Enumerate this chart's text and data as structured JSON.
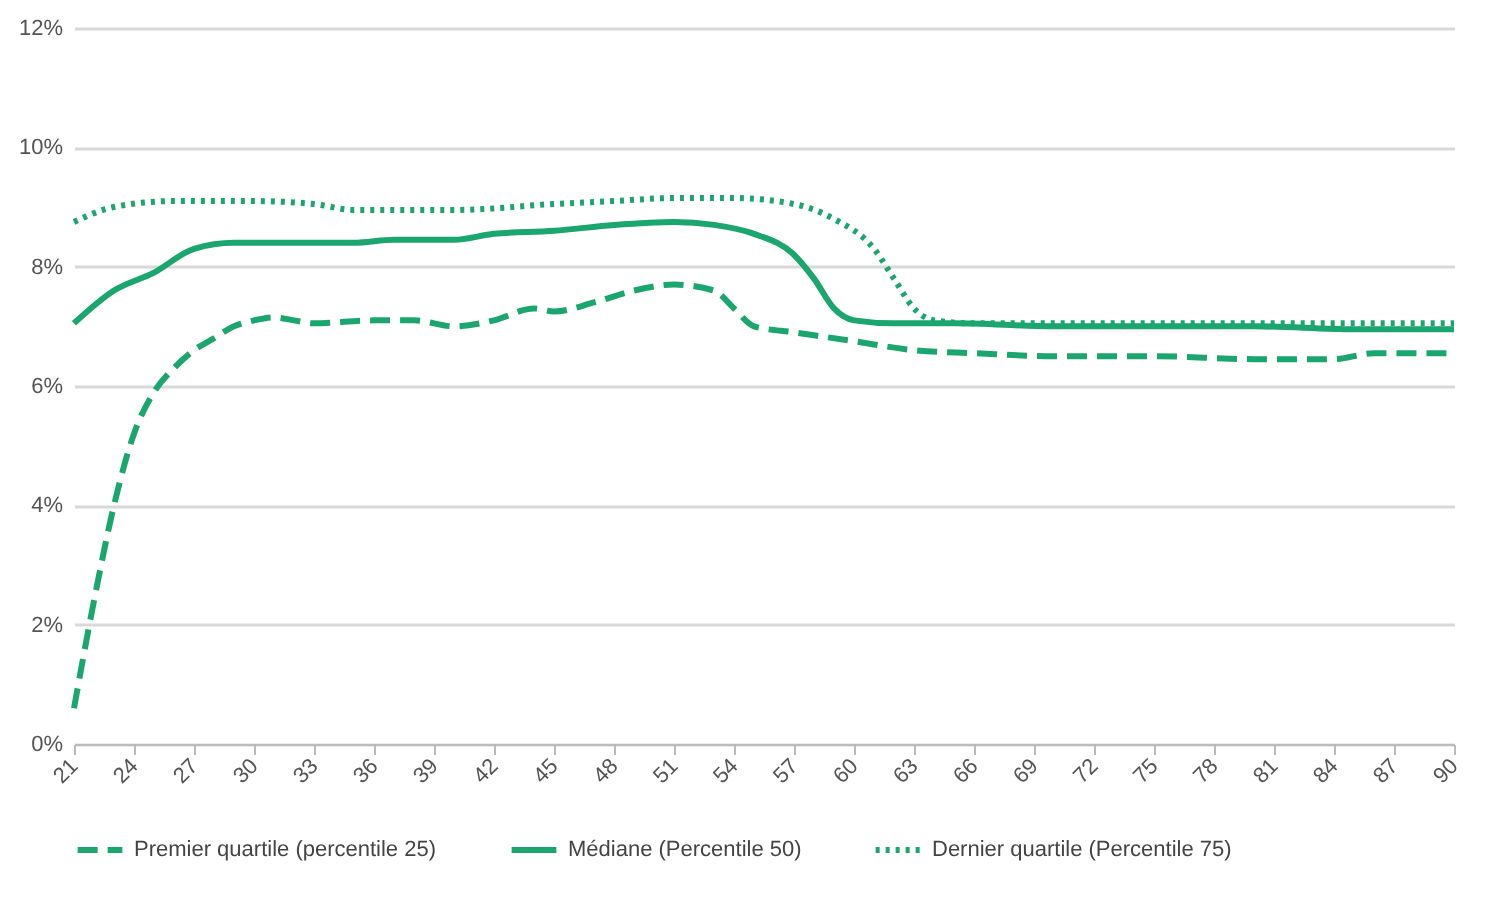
{
  "chart_data": {
    "type": "line",
    "xlim": [
      21,
      90
    ],
    "xticks": [
      21,
      24,
      27,
      30,
      33,
      36,
      39,
      42,
      45,
      48,
      51,
      54,
      57,
      60,
      63,
      66,
      69,
      72,
      75,
      78,
      81,
      84,
      87,
      90
    ],
    "ylim": [
      0,
      12
    ],
    "yticks": [
      {
        "value": 0,
        "label": "0%"
      },
      {
        "value": 2,
        "label": "2%"
      },
      {
        "value": 4,
        "label": "4%"
      },
      {
        "value": 6,
        "label": "6%"
      },
      {
        "value": 8,
        "label": "8%"
      },
      {
        "value": 10,
        "label": "10%"
      },
      {
        "value": 12,
        "label": "12%"
      }
    ],
    "grid": "y",
    "legend": "bottom",
    "series": [
      {
        "name": "Premier quartile (percentile 25)",
        "color": "#1aa66e",
        "line_style": "dashed",
        "x": [
          21,
          22,
          23,
          24,
          25,
          26,
          27,
          28,
          29,
          30,
          31,
          32,
          33,
          36,
          38,
          40,
          42,
          44,
          45,
          47,
          49,
          51,
          53,
          54,
          55,
          57,
          60,
          63,
          66,
          70,
          75,
          80,
          84,
          86,
          90
        ],
        "values": [
          0.6,
          2.4,
          4.0,
          5.2,
          5.9,
          6.3,
          6.6,
          6.8,
          7.0,
          7.1,
          7.15,
          7.1,
          7.05,
          7.1,
          7.1,
          7.0,
          7.1,
          7.3,
          7.25,
          7.4,
          7.6,
          7.7,
          7.6,
          7.3,
          7.0,
          6.9,
          6.75,
          6.6,
          6.55,
          6.5,
          6.5,
          6.45,
          6.45,
          6.55,
          6.55
        ]
      },
      {
        "name": "Médiane (Percentile 50)",
        "color": "#1aa66e",
        "line_style": "solid",
        "x": [
          21,
          23,
          25,
          27,
          29,
          31,
          33,
          35,
          37,
          40,
          42,
          45,
          48,
          51,
          53,
          55,
          57,
          58,
          59,
          60,
          62,
          65,
          70,
          80,
          85,
          90
        ],
        "values": [
          7.05,
          7.6,
          7.9,
          8.3,
          8.4,
          8.4,
          8.4,
          8.4,
          8.45,
          8.45,
          8.55,
          8.6,
          8.7,
          8.75,
          8.7,
          8.55,
          8.2,
          7.8,
          7.3,
          7.1,
          7.05,
          7.05,
          7.0,
          7.0,
          6.95,
          6.95
        ]
      },
      {
        "name": "Dernier quartile (Percentile 75)",
        "color": "#1aa66e",
        "line_style": "dotted",
        "x": [
          21,
          23,
          26,
          30,
          33,
          35,
          40,
          45,
          48,
          51,
          54,
          57,
          59,
          61,
          62,
          63,
          64,
          66,
          90
        ],
        "values": [
          8.75,
          9.0,
          9.1,
          9.1,
          9.05,
          8.95,
          8.95,
          9.05,
          9.1,
          9.15,
          9.15,
          9.05,
          8.8,
          8.3,
          7.8,
          7.3,
          7.1,
          7.05,
          7.05
        ]
      }
    ]
  }
}
